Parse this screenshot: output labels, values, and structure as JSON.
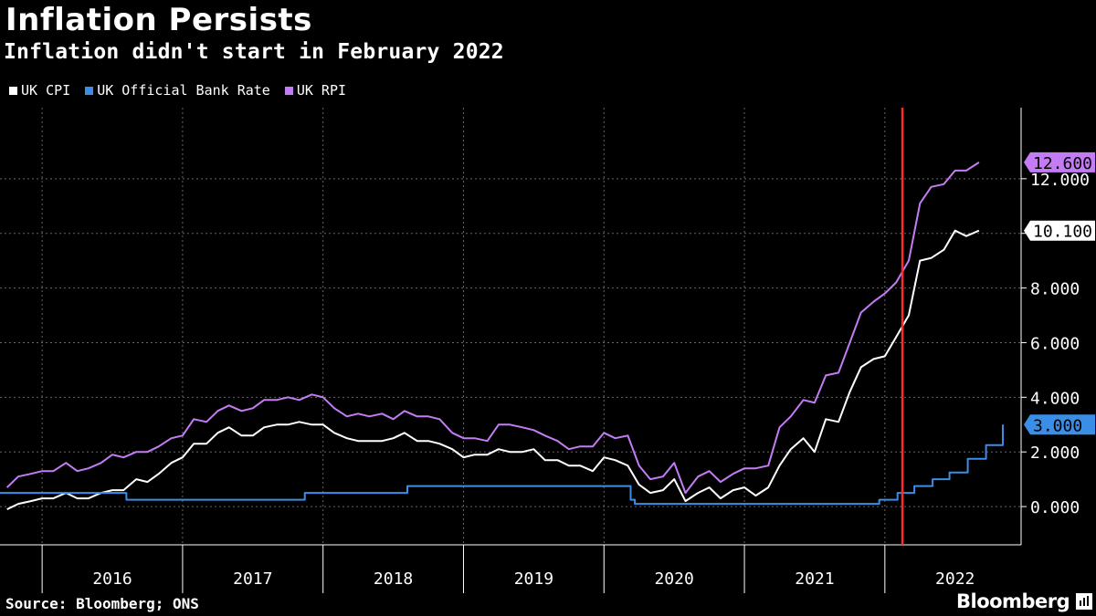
{
  "title": "Inflation Persists",
  "subtitle": "Inflation didn't start in February 2022",
  "source": "Source: Bloomberg; ONS",
  "brand": "Bloomberg",
  "colors": {
    "cpi": "#ffffff",
    "bank_rate": "#3a8ee6",
    "rpi": "#c47cf5",
    "marker": "#ff2a2a",
    "grid": "#666666"
  },
  "chart_data": {
    "type": "line",
    "title": "Inflation Persists",
    "subtitle": "Inflation didn't start in February 2022",
    "xlabel": "",
    "ylabel": "",
    "x_tick_labels": [
      "2016",
      "2017",
      "2018",
      "2019",
      "2020",
      "2021",
      "2022"
    ],
    "y_tick_labels": [
      "0.000",
      "2.000",
      "4.000",
      "6.000",
      "8.000",
      "10.000",
      "12.000"
    ],
    "yticks": [
      0,
      2,
      4,
      6,
      8,
      10,
      12
    ],
    "ylim": [
      -1.4,
      14.6
    ],
    "xlim": [
      2015.7,
      2022.97
    ],
    "annotation": {
      "type": "vertical-line",
      "x": 2022.125,
      "label": "February 2022"
    },
    "legend_position": "top-left",
    "series": [
      {
        "name": "UK CPI",
        "color": "#ffffff",
        "end_label": "10.100",
        "points": [
          [
            2015.75,
            -0.1
          ],
          [
            2015.83,
            0.1
          ],
          [
            2015.92,
            0.2
          ],
          [
            2016.0,
            0.3
          ],
          [
            2016.08,
            0.3
          ],
          [
            2016.17,
            0.5
          ],
          [
            2016.25,
            0.3
          ],
          [
            2016.33,
            0.3
          ],
          [
            2016.42,
            0.5
          ],
          [
            2016.5,
            0.6
          ],
          [
            2016.58,
            0.6
          ],
          [
            2016.67,
            1.0
          ],
          [
            2016.75,
            0.9
          ],
          [
            2016.83,
            1.2
          ],
          [
            2016.92,
            1.6
          ],
          [
            2017.0,
            1.8
          ],
          [
            2017.08,
            2.3
          ],
          [
            2017.17,
            2.3
          ],
          [
            2017.25,
            2.7
          ],
          [
            2017.33,
            2.9
          ],
          [
            2017.42,
            2.6
          ],
          [
            2017.5,
            2.6
          ],
          [
            2017.58,
            2.9
          ],
          [
            2017.67,
            3.0
          ],
          [
            2017.75,
            3.0
          ],
          [
            2017.83,
            3.1
          ],
          [
            2017.92,
            3.0
          ],
          [
            2018.0,
            3.0
          ],
          [
            2018.08,
            2.7
          ],
          [
            2018.17,
            2.5
          ],
          [
            2018.25,
            2.4
          ],
          [
            2018.33,
            2.4
          ],
          [
            2018.42,
            2.4
          ],
          [
            2018.5,
            2.5
          ],
          [
            2018.58,
            2.7
          ],
          [
            2018.67,
            2.4
          ],
          [
            2018.75,
            2.4
          ],
          [
            2018.83,
            2.3
          ],
          [
            2018.92,
            2.1
          ],
          [
            2019.0,
            1.8
          ],
          [
            2019.08,
            1.9
          ],
          [
            2019.17,
            1.9
          ],
          [
            2019.25,
            2.1
          ],
          [
            2019.33,
            2.0
          ],
          [
            2019.42,
            2.0
          ],
          [
            2019.5,
            2.1
          ],
          [
            2019.58,
            1.7
          ],
          [
            2019.67,
            1.7
          ],
          [
            2019.75,
            1.5
          ],
          [
            2019.83,
            1.5
          ],
          [
            2019.92,
            1.3
          ],
          [
            2020.0,
            1.8
          ],
          [
            2020.08,
            1.7
          ],
          [
            2020.17,
            1.5
          ],
          [
            2020.25,
            0.8
          ],
          [
            2020.33,
            0.5
          ],
          [
            2020.42,
            0.6
          ],
          [
            2020.5,
            1.0
          ],
          [
            2020.58,
            0.2
          ],
          [
            2020.67,
            0.5
          ],
          [
            2020.75,
            0.7
          ],
          [
            2020.83,
            0.3
          ],
          [
            2020.92,
            0.6
          ],
          [
            2021.0,
            0.7
          ],
          [
            2021.08,
            0.4
          ],
          [
            2021.17,
            0.7
          ],
          [
            2021.25,
            1.5
          ],
          [
            2021.33,
            2.1
          ],
          [
            2021.42,
            2.5
          ],
          [
            2021.5,
            2.0
          ],
          [
            2021.58,
            3.2
          ],
          [
            2021.67,
            3.1
          ],
          [
            2021.75,
            4.2
          ],
          [
            2021.83,
            5.1
          ],
          [
            2021.92,
            5.4
          ],
          [
            2022.0,
            5.5
          ],
          [
            2022.08,
            6.2
          ],
          [
            2022.17,
            7.0
          ],
          [
            2022.25,
            9.0
          ],
          [
            2022.33,
            9.1
          ],
          [
            2022.42,
            9.4
          ],
          [
            2022.5,
            10.1
          ],
          [
            2022.58,
            9.9
          ],
          [
            2022.67,
            10.1
          ]
        ]
      },
      {
        "name": "UK Official Bank Rate",
        "color": "#3a8ee6",
        "end_label": "3.000",
        "points": [
          [
            2015.7,
            0.5
          ],
          [
            2016.6,
            0.5
          ],
          [
            2016.6,
            0.25
          ],
          [
            2017.87,
            0.25
          ],
          [
            2017.87,
            0.5
          ],
          [
            2018.6,
            0.5
          ],
          [
            2018.6,
            0.75
          ],
          [
            2020.19,
            0.75
          ],
          [
            2020.19,
            0.25
          ],
          [
            2020.22,
            0.25
          ],
          [
            2020.22,
            0.1
          ],
          [
            2021.96,
            0.1
          ],
          [
            2021.96,
            0.25
          ],
          [
            2022.09,
            0.25
          ],
          [
            2022.09,
            0.5
          ],
          [
            2022.21,
            0.5
          ],
          [
            2022.21,
            0.75
          ],
          [
            2022.34,
            0.75
          ],
          [
            2022.34,
            1.0
          ],
          [
            2022.46,
            1.0
          ],
          [
            2022.46,
            1.25
          ],
          [
            2022.59,
            1.25
          ],
          [
            2022.59,
            1.75
          ],
          [
            2022.72,
            1.75
          ],
          [
            2022.72,
            2.25
          ],
          [
            2022.84,
            2.25
          ],
          [
            2022.84,
            3.0
          ]
        ]
      },
      {
        "name": "UK RPI",
        "color": "#c47cf5",
        "end_label": "12.600",
        "points": [
          [
            2015.75,
            0.7
          ],
          [
            2015.83,
            1.1
          ],
          [
            2015.92,
            1.2
          ],
          [
            2016.0,
            1.3
          ],
          [
            2016.08,
            1.3
          ],
          [
            2016.17,
            1.6
          ],
          [
            2016.25,
            1.3
          ],
          [
            2016.33,
            1.4
          ],
          [
            2016.42,
            1.6
          ],
          [
            2016.5,
            1.9
          ],
          [
            2016.58,
            1.8
          ],
          [
            2016.67,
            2.0
          ],
          [
            2016.75,
            2.0
          ],
          [
            2016.83,
            2.2
          ],
          [
            2016.92,
            2.5
          ],
          [
            2017.0,
            2.6
          ],
          [
            2017.08,
            3.2
          ],
          [
            2017.17,
            3.1
          ],
          [
            2017.25,
            3.5
          ],
          [
            2017.33,
            3.7
          ],
          [
            2017.42,
            3.5
          ],
          [
            2017.5,
            3.6
          ],
          [
            2017.58,
            3.9
          ],
          [
            2017.67,
            3.9
          ],
          [
            2017.75,
            4.0
          ],
          [
            2017.83,
            3.9
          ],
          [
            2017.92,
            4.1
          ],
          [
            2018.0,
            4.0
          ],
          [
            2018.08,
            3.6
          ],
          [
            2018.17,
            3.3
          ],
          [
            2018.25,
            3.4
          ],
          [
            2018.33,
            3.3
          ],
          [
            2018.42,
            3.4
          ],
          [
            2018.5,
            3.2
          ],
          [
            2018.58,
            3.5
          ],
          [
            2018.67,
            3.3
          ],
          [
            2018.75,
            3.3
          ],
          [
            2018.83,
            3.2
          ],
          [
            2018.92,
            2.7
          ],
          [
            2019.0,
            2.5
          ],
          [
            2019.08,
            2.5
          ],
          [
            2019.17,
            2.4
          ],
          [
            2019.25,
            3.0
          ],
          [
            2019.33,
            3.0
          ],
          [
            2019.42,
            2.9
          ],
          [
            2019.5,
            2.8
          ],
          [
            2019.58,
            2.6
          ],
          [
            2019.67,
            2.4
          ],
          [
            2019.75,
            2.1
          ],
          [
            2019.83,
            2.2
          ],
          [
            2019.92,
            2.2
          ],
          [
            2020.0,
            2.7
          ],
          [
            2020.08,
            2.5
          ],
          [
            2020.17,
            2.6
          ],
          [
            2020.25,
            1.5
          ],
          [
            2020.33,
            1.0
          ],
          [
            2020.42,
            1.1
          ],
          [
            2020.5,
            1.6
          ],
          [
            2020.58,
            0.5
          ],
          [
            2020.67,
            1.1
          ],
          [
            2020.75,
            1.3
          ],
          [
            2020.83,
            0.9
          ],
          [
            2020.92,
            1.2
          ],
          [
            2021.0,
            1.4
          ],
          [
            2021.08,
            1.4
          ],
          [
            2021.17,
            1.5
          ],
          [
            2021.25,
            2.9
          ],
          [
            2021.33,
            3.3
          ],
          [
            2021.42,
            3.9
          ],
          [
            2021.5,
            3.8
          ],
          [
            2021.58,
            4.8
          ],
          [
            2021.67,
            4.9
          ],
          [
            2021.75,
            6.0
          ],
          [
            2021.83,
            7.1
          ],
          [
            2021.92,
            7.5
          ],
          [
            2022.0,
            7.8
          ],
          [
            2022.08,
            8.2
          ],
          [
            2022.17,
            9.0
          ],
          [
            2022.25,
            11.1
          ],
          [
            2022.33,
            11.7
          ],
          [
            2022.42,
            11.8
          ],
          [
            2022.5,
            12.3
          ],
          [
            2022.58,
            12.3
          ],
          [
            2022.67,
            12.6
          ]
        ]
      }
    ]
  },
  "legend": [
    {
      "label": "UK CPI",
      "color": "#ffffff"
    },
    {
      "label": "UK Official Bank Rate",
      "color": "#3a8ee6"
    },
    {
      "label": "UK RPI",
      "color": "#c47cf5"
    }
  ]
}
